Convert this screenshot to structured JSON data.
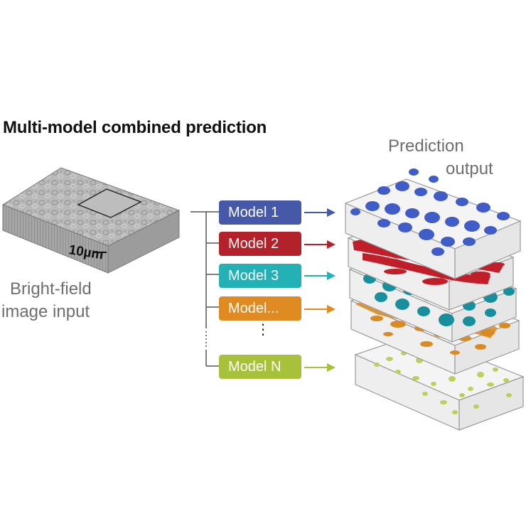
{
  "title": "Multi-model combined prediction",
  "input_label": [
    "Bright-field",
    "image input"
  ],
  "output_label": [
    "Prediction",
    "output"
  ],
  "scale_bar_label": "10µm",
  "models": [
    {
      "label": "Model 1",
      "color": "#4559a8"
    },
    {
      "label": "Model 2",
      "color": "#b3222a"
    },
    {
      "label": "Model 3",
      "color": "#24b1b5"
    },
    {
      "label": "Model...",
      "color": "#e08a22"
    },
    {
      "label": "Model N",
      "color": "#a7c23a"
    }
  ],
  "ellipsis": "⋮",
  "colors": {
    "title": "#111111",
    "label": "#6e6e6e",
    "slab": "#9a9a9a"
  }
}
